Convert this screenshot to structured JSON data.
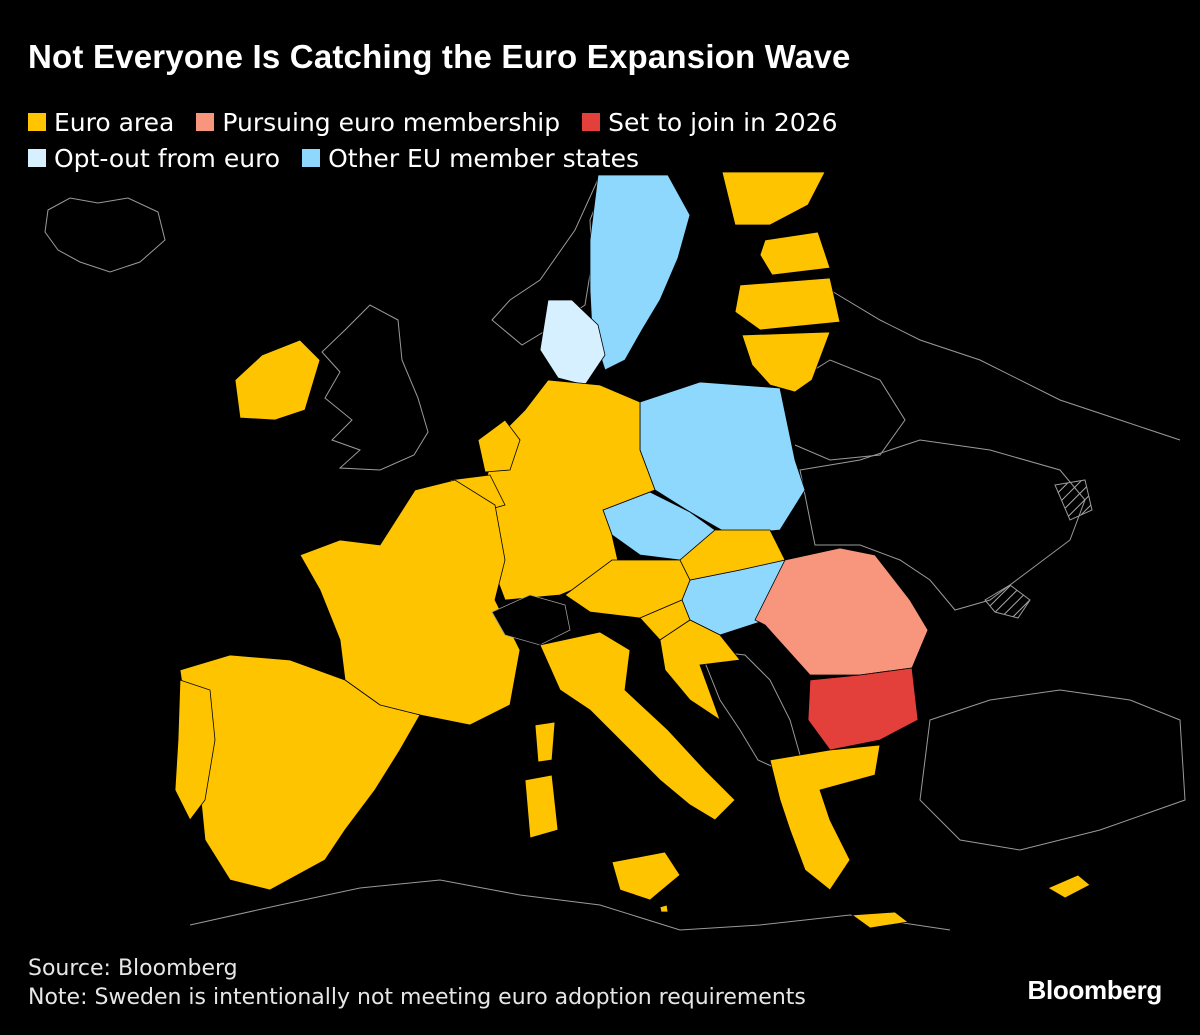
{
  "title": "Not Everyone Is Catching the Euro Expansion Wave",
  "colors": {
    "euro_area": "#ffc400",
    "pursuing": "#f7967c",
    "set_to_join": "#e4403b",
    "opt_out": "#d6f0ff",
    "other_eu": "#8dd8fc",
    "background": "#000000",
    "border": "#9a9a9a"
  },
  "legend": {
    "items": [
      {
        "label": "Euro area",
        "color": "#ffc400"
      },
      {
        "label": "Pursuing euro membership",
        "color": "#f7967c"
      },
      {
        "label": "Set to join in 2026",
        "color": "#e4403b"
      },
      {
        "label": "Opt-out from euro",
        "color": "#d6f0ff"
      },
      {
        "label": "Other EU member states",
        "color": "#8dd8fc"
      }
    ]
  },
  "map": {
    "status": {
      "euro_area": [
        "Germany",
        "France",
        "Spain",
        "Portugal",
        "Italy",
        "Austria",
        "Belgium",
        "Netherlands",
        "Luxembourg",
        "Ireland",
        "Finland",
        "Estonia",
        "Latvia",
        "Lithuania",
        "Slovakia",
        "Slovenia",
        "Croatia",
        "Greece",
        "Cyprus",
        "Malta"
      ],
      "pursuing": [
        "Romania"
      ],
      "set_to_join": [
        "Bulgaria"
      ],
      "opt_out": [
        "Denmark"
      ],
      "other_eu": [
        "Sweden",
        "Poland",
        "Czech Republic",
        "Hungary"
      ]
    }
  },
  "footer": {
    "source": "Source: Bloomberg",
    "note": "Note: Sweden is intentionally not meeting euro adoption requirements"
  },
  "brand": "Bloomberg"
}
